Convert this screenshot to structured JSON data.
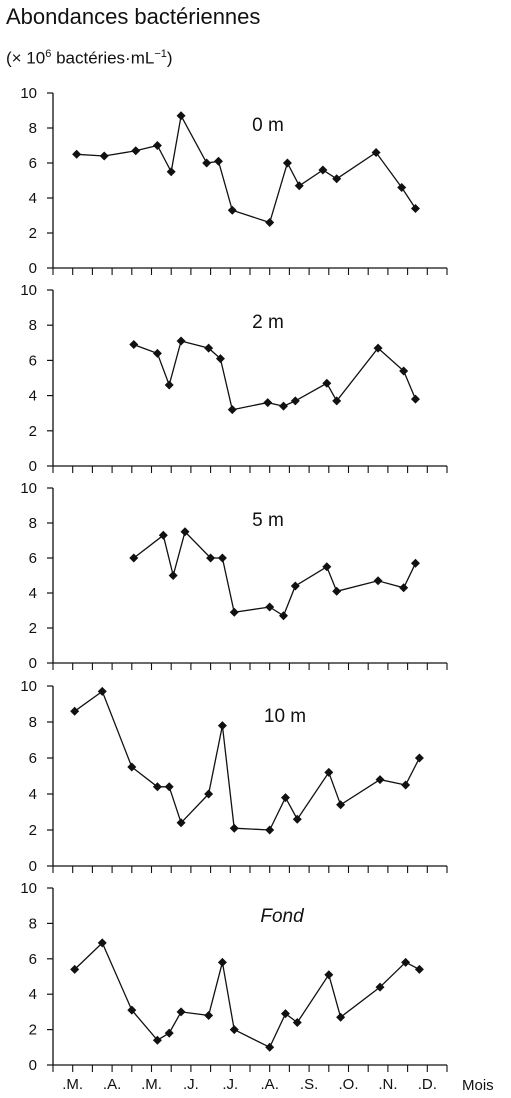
{
  "chart_data": {
    "type": "line",
    "title": "Abondances bactériennes",
    "units": {
      "prefix": "(× 10",
      "exp": "6",
      "text": " bactéries·mL",
      "exp2": "−1",
      "suffix": ")"
    },
    "xlabel": "Mois",
    "month_labels": [
      ".M.",
      ".A.",
      ".M.",
      ".J.",
      ".J.",
      ".A.",
      ".S.",
      ".O.",
      ".N.",
      ".D."
    ],
    "x_unit": "months (0 = start of March)",
    "xlim": [
      0,
      10
    ],
    "ylim": [
      0,
      10
    ],
    "yticks": [
      0,
      2,
      4,
      6,
      8,
      10
    ],
    "panels": [
      {
        "name": "0 m",
        "points": [
          [
            0.6,
            6.5
          ],
          [
            1.3,
            6.4
          ],
          [
            2.1,
            6.7
          ],
          [
            2.65,
            7.0
          ],
          [
            3.0,
            5.5
          ],
          [
            3.25,
            8.7
          ],
          [
            3.9,
            6.0
          ],
          [
            4.2,
            6.1
          ],
          [
            4.55,
            3.3
          ],
          [
            5.5,
            2.6
          ],
          [
            5.95,
            6.0
          ],
          [
            6.25,
            4.7
          ],
          [
            6.85,
            5.6
          ],
          [
            7.2,
            5.1
          ],
          [
            8.2,
            6.6
          ],
          [
            8.85,
            4.6
          ],
          [
            9.2,
            3.4
          ]
        ]
      },
      {
        "name": "2 m",
        "points": [
          [
            2.05,
            6.9
          ],
          [
            2.65,
            6.4
          ],
          [
            2.95,
            4.6
          ],
          [
            3.25,
            7.1
          ],
          [
            3.95,
            6.7
          ],
          [
            4.25,
            6.1
          ],
          [
            4.55,
            3.2
          ],
          [
            5.45,
            3.6
          ],
          [
            5.85,
            3.4
          ],
          [
            6.15,
            3.7
          ],
          [
            6.95,
            4.7
          ],
          [
            7.2,
            3.7
          ],
          [
            8.25,
            6.7
          ],
          [
            8.9,
            5.4
          ],
          [
            9.2,
            3.8
          ]
        ]
      },
      {
        "name": "5 m",
        "points": [
          [
            2.05,
            6.0
          ],
          [
            2.8,
            7.3
          ],
          [
            3.05,
            5.0
          ],
          [
            3.35,
            7.5
          ],
          [
            4.0,
            6.0
          ],
          [
            4.3,
            6.0
          ],
          [
            4.6,
            2.9
          ],
          [
            5.5,
            3.2
          ],
          [
            5.85,
            2.7
          ],
          [
            6.15,
            4.4
          ],
          [
            6.95,
            5.5
          ],
          [
            7.2,
            4.1
          ],
          [
            8.25,
            4.7
          ],
          [
            8.9,
            4.3
          ],
          [
            9.2,
            5.7
          ]
        ]
      },
      {
        "name": "10 m",
        "points": [
          [
            0.55,
            8.6
          ],
          [
            1.25,
            9.7
          ],
          [
            2.0,
            5.5
          ],
          [
            2.65,
            4.4
          ],
          [
            2.95,
            4.4
          ],
          [
            3.25,
            2.4
          ],
          [
            3.95,
            4.0
          ],
          [
            4.3,
            7.8
          ],
          [
            4.6,
            2.1
          ],
          [
            5.5,
            2.0
          ],
          [
            5.9,
            3.8
          ],
          [
            6.2,
            2.6
          ],
          [
            7.0,
            5.2
          ],
          [
            7.3,
            3.4
          ],
          [
            8.3,
            4.8
          ],
          [
            8.95,
            4.5
          ],
          [
            9.3,
            6.0
          ]
        ]
      },
      {
        "name": "Fond",
        "points": [
          [
            0.55,
            5.4
          ],
          [
            1.25,
            6.9
          ],
          [
            2.0,
            3.1
          ],
          [
            2.65,
            1.4
          ],
          [
            2.95,
            1.8
          ],
          [
            3.25,
            3.0
          ],
          [
            3.95,
            2.8
          ],
          [
            4.3,
            5.8
          ],
          [
            4.6,
            2.0
          ],
          [
            5.5,
            1.0
          ],
          [
            5.9,
            2.9
          ],
          [
            6.2,
            2.4
          ],
          [
            7.0,
            5.1
          ],
          [
            7.3,
            2.7
          ],
          [
            8.3,
            4.4
          ],
          [
            8.95,
            5.8
          ],
          [
            9.3,
            5.4
          ]
        ]
      }
    ]
  }
}
